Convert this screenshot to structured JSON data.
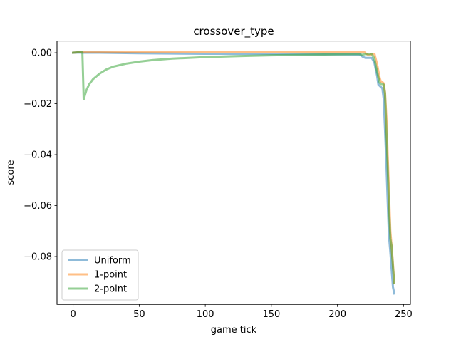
{
  "chart_data": {
    "type": "line",
    "title": "crossover_type",
    "xlabel": "game tick",
    "ylabel": "score",
    "xlim": [
      -12.2,
      255.2
    ],
    "ylim": [
      -0.0988,
      0.0046
    ],
    "xticks": [
      0,
      50,
      100,
      150,
      200,
      250
    ],
    "xtick_labels": [
      "0",
      "50",
      "100",
      "150",
      "200",
      "250"
    ],
    "yticks": [
      0.0,
      -0.02,
      -0.04,
      -0.06,
      -0.08
    ],
    "ytick_labels": [
      "0.00",
      "−0.02",
      "−0.04",
      "−0.06",
      "−0.08"
    ],
    "grid": false,
    "legend_position": "lower-left",
    "series": [
      {
        "name": "Uniform",
        "color": "#1f77b4",
        "x": [
          0,
          4,
          8,
          20,
          50,
          100,
          150,
          200,
          217,
          219,
          221,
          224,
          226,
          228,
          230,
          231,
          232,
          233,
          234,
          235,
          236,
          237,
          238,
          239,
          240,
          241,
          242,
          243
        ],
        "y": [
          0.0,
          0.0001,
          0.0,
          0.0,
          -0.0002,
          -0.0004,
          -0.0005,
          -0.0006,
          -0.0007,
          -0.0015,
          -0.002,
          -0.002,
          -0.002,
          -0.004,
          -0.009,
          -0.0125,
          -0.013,
          -0.0135,
          -0.014,
          -0.018,
          -0.03,
          -0.043,
          -0.058,
          -0.072,
          -0.078,
          -0.085,
          -0.092,
          -0.0945
        ]
      },
      {
        "name": "1-point",
        "color": "#ff7f0e",
        "x": [
          0,
          4,
          8,
          20,
          50,
          100,
          150,
          200,
          218,
          220,
          222,
          224,
          226,
          228,
          230,
          232,
          233,
          234,
          235,
          236,
          237,
          238,
          239,
          240,
          241,
          242,
          243
        ],
        "y": [
          0.0,
          0.0002,
          0.0003,
          0.0003,
          0.0003,
          0.0003,
          0.0004,
          0.0004,
          0.0004,
          0.0004,
          -0.0005,
          -0.001,
          -0.0005,
          -0.0004,
          -0.0045,
          -0.01,
          -0.0115,
          -0.0115,
          -0.012,
          -0.0155,
          -0.025,
          -0.04,
          -0.055,
          -0.07,
          -0.076,
          -0.083,
          -0.0905
        ]
      },
      {
        "name": "2-point",
        "color": "#2ca02c",
        "x": [
          0,
          4,
          7,
          8,
          9,
          10,
          12,
          15,
          20,
          25,
          30,
          40,
          50,
          60,
          75,
          100,
          125,
          150,
          175,
          200,
          216,
          219,
          221,
          224,
          226,
          228,
          230,
          232,
          233,
          234,
          235,
          236,
          237,
          238,
          239,
          240,
          241,
          242,
          243
        ],
        "y": [
          0.0,
          0.0002,
          0.0003,
          -0.0183,
          -0.0165,
          -0.0148,
          -0.0125,
          -0.0104,
          -0.0082,
          -0.0066,
          -0.0055,
          -0.0043,
          -0.0035,
          -0.0029,
          -0.0023,
          -0.0017,
          -0.0013,
          -0.001,
          -0.0008,
          -0.0006,
          -0.0005,
          -0.0008,
          -0.0005,
          -0.0005,
          -0.0004,
          -0.0025,
          -0.0075,
          -0.0118,
          -0.0123,
          -0.0123,
          -0.0125,
          -0.016,
          -0.03,
          -0.045,
          -0.06,
          -0.073,
          -0.076,
          -0.084,
          -0.0905
        ]
      }
    ]
  }
}
